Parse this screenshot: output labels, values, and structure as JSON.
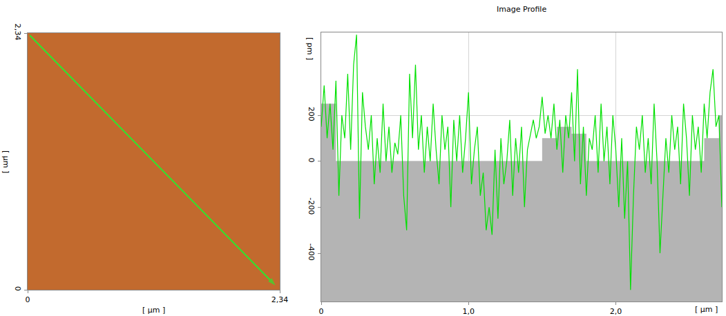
{
  "chart_data": [
    {
      "type": "image",
      "color": "#c26a2e",
      "xlim": [
        0,
        2.34
      ],
      "ylim": [
        0,
        2.34
      ],
      "xticks": [
        0,
        {
          "value": 2.34,
          "label": "2,34"
        }
      ],
      "yticks": [
        0,
        {
          "value": 2.34,
          "label": "2,34"
        }
      ],
      "x_label": "[ µm ]",
      "y_label": "[ µm ]",
      "series": [
        {
          "type": "line",
          "color": "#2ee62e",
          "marker": "arrow",
          "x": [
            0.02,
            2.3
          ],
          "values": [
            2.32,
            0.04
          ]
        }
      ]
    },
    {
      "type": "line",
      "title": "Image Profile",
      "x_label": "[ µm ]",
      "y_label": "[ pm ]",
      "xlim": [
        0,
        2.72
      ],
      "ylim": [
        -610,
        560
      ],
      "xticks": [
        0,
        {
          "value": 1,
          "label": "1,0"
        },
        {
          "value": 2,
          "label": "2,0"
        }
      ],
      "yticks": [
        -400,
        -200,
        0,
        200
      ],
      "grid": true,
      "series": [
        {
          "type": "area",
          "color": "#b4b4b4",
          "line_style": "step",
          "x": [
            0,
            0.1,
            0.2,
            0.3,
            0.4,
            0.5,
            0.6,
            0.7,
            0.8,
            0.9,
            1.0,
            1.1,
            1.2,
            1.3,
            1.4,
            1.5,
            1.6,
            1.7,
            1.8,
            1.9,
            2.0,
            2.1,
            2.2,
            2.3,
            2.4,
            2.5,
            2.6,
            2.7,
            2.72
          ],
          "values": [
            250,
            0,
            0,
            0,
            0,
            0,
            0,
            0,
            0,
            0,
            0,
            0,
            0,
            0,
            0,
            100,
            150,
            120,
            0,
            0,
            0,
            0,
            0,
            0,
            0,
            0,
            100,
            200,
            200
          ]
        },
        {
          "type": "line",
          "color": "#00e000",
          "x": [
            0,
            0.02,
            0.04,
            0.06,
            0.08,
            0.1,
            0.12,
            0.14,
            0.16,
            0.18,
            0.2,
            0.22,
            0.24,
            0.26,
            0.28,
            0.3,
            0.32,
            0.34,
            0.36,
            0.38,
            0.4,
            0.42,
            0.44,
            0.46,
            0.48,
            0.5,
            0.52,
            0.54,
            0.56,
            0.58,
            0.6,
            0.62,
            0.64,
            0.66,
            0.68,
            0.7,
            0.72,
            0.74,
            0.76,
            0.78,
            0.8,
            0.82,
            0.84,
            0.86,
            0.88,
            0.9,
            0.92,
            0.94,
            0.96,
            0.98,
            1.0,
            1.02,
            1.04,
            1.06,
            1.08,
            1.1,
            1.12,
            1.14,
            1.16,
            1.18,
            1.2,
            1.22,
            1.24,
            1.26,
            1.28,
            1.3,
            1.32,
            1.34,
            1.36,
            1.38,
            1.4,
            1.42,
            1.44,
            1.46,
            1.48,
            1.5,
            1.52,
            1.54,
            1.56,
            1.58,
            1.6,
            1.62,
            1.64,
            1.66,
            1.68,
            1.7,
            1.72,
            1.74,
            1.76,
            1.78,
            1.8,
            1.82,
            1.84,
            1.86,
            1.88,
            1.9,
            1.92,
            1.94,
            1.96,
            1.98,
            2.0,
            2.02,
            2.04,
            2.06,
            2.08,
            2.1,
            2.12,
            2.14,
            2.16,
            2.18,
            2.2,
            2.22,
            2.24,
            2.26,
            2.28,
            2.3,
            2.32,
            2.34,
            2.36,
            2.38,
            2.4,
            2.42,
            2.44,
            2.46,
            2.48,
            2.5,
            2.52,
            2.54,
            2.56,
            2.58,
            2.6,
            2.62,
            2.64,
            2.66,
            2.68,
            2.7,
            2.72
          ],
          "values": [
            150,
            330,
            100,
            250,
            50,
            350,
            -150,
            200,
            100,
            380,
            50,
            420,
            550,
            -250,
            300,
            150,
            50,
            200,
            -100,
            100,
            -50,
            250,
            0,
            150,
            -50,
            80,
            30,
            200,
            -150,
            -300,
            380,
            100,
            420,
            50,
            200,
            -50,
            150,
            0,
            250,
            50,
            -100,
            200,
            50,
            150,
            -200,
            180,
            0,
            200,
            -50,
            100,
            300,
            -100,
            50,
            150,
            -150,
            -50,
            -300,
            -200,
            -320,
            50,
            -250,
            100,
            -100,
            0,
            180,
            -150,
            100,
            -50,
            150,
            -200,
            50,
            120,
            180,
            100,
            150,
            280,
            120,
            200,
            100,
            250,
            50,
            180,
            -50,
            200,
            100,
            300,
            0,
            400,
            -100,
            150,
            -150,
            100,
            50,
            200,
            -50,
            250,
            0,
            150,
            -100,
            200,
            50,
            -200,
            100,
            -250,
            0,
            -560,
            -150,
            150,
            50,
            200,
            -50,
            100,
            -100,
            250,
            0,
            -400,
            -150,
            100,
            -50,
            200,
            50,
            150,
            -100,
            250,
            100,
            -150,
            200,
            50,
            150,
            -50,
            250,
            100,
            300,
            400,
            150,
            200,
            -200
          ]
        }
      ]
    }
  ]
}
